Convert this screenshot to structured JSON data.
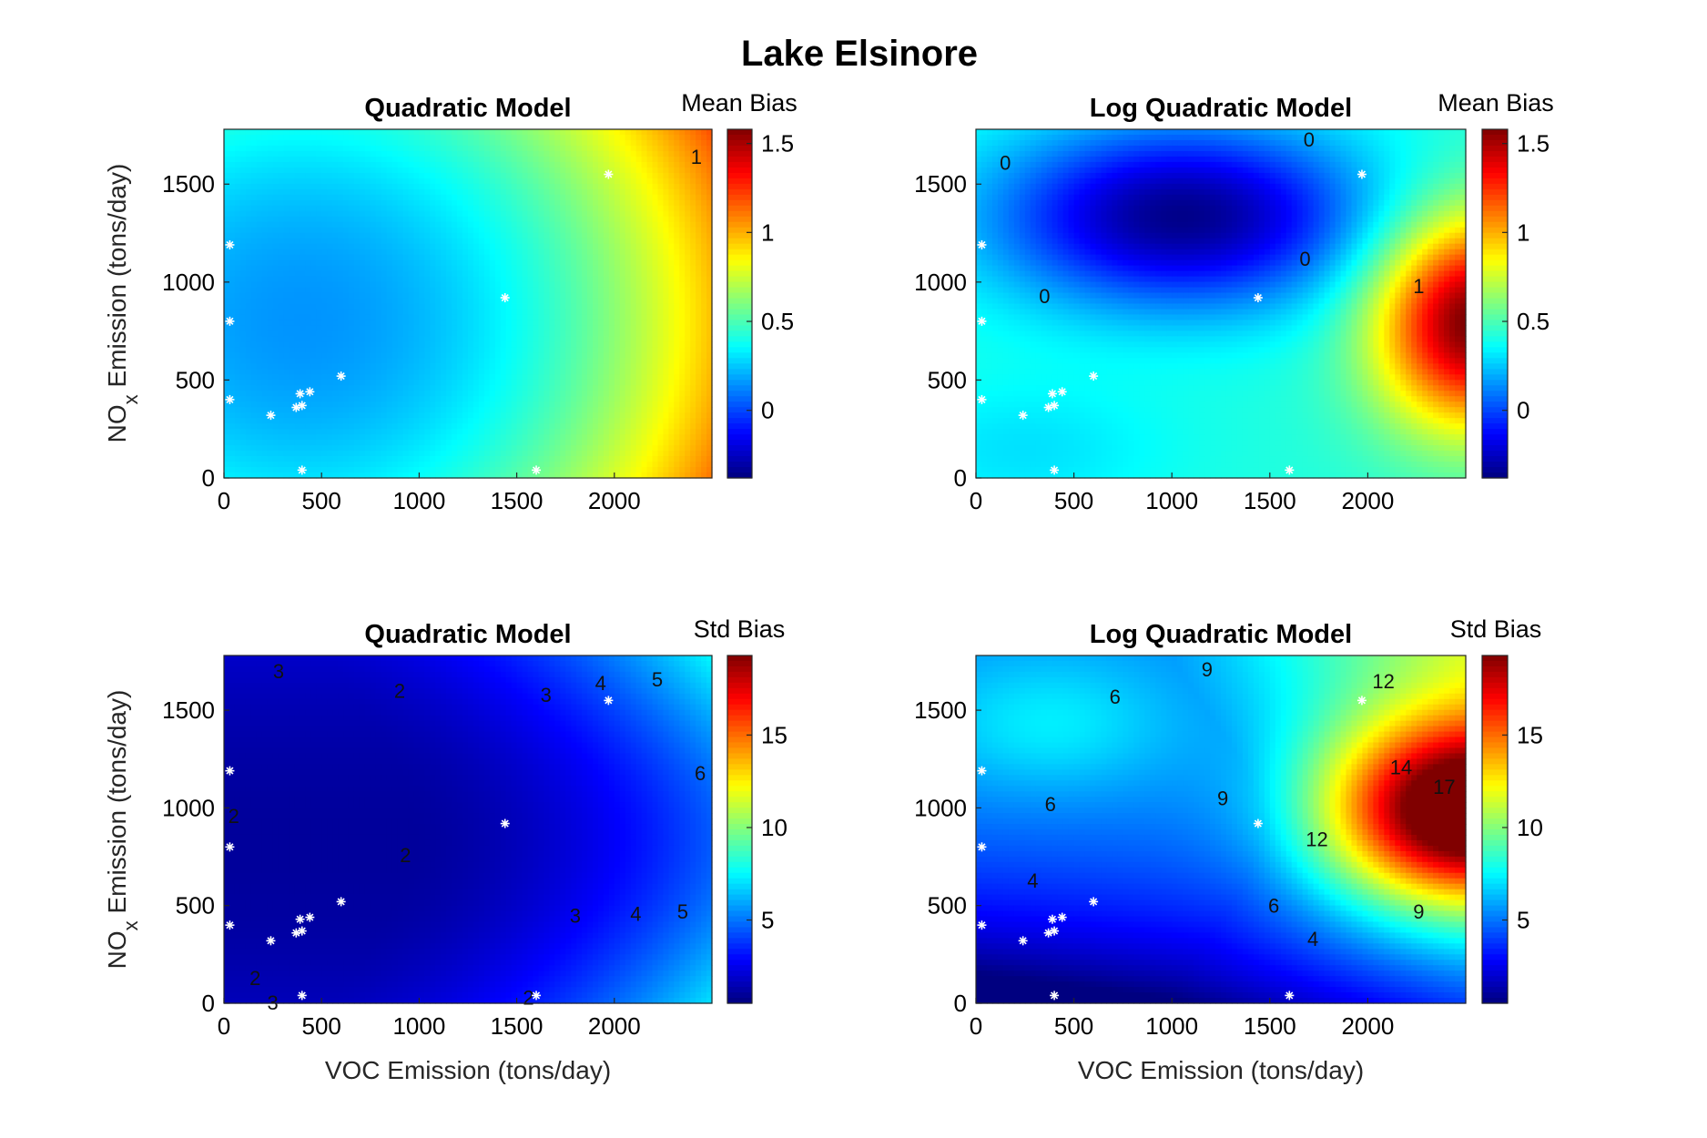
{
  "figure": {
    "title": "Lake Elsinore",
    "xlabel": "VOC Emission (tons/day)",
    "ylabel_prefix": "NO",
    "ylabel_subscript": "x",
    "ylabel_suffix": " Emission (tons/day)"
  },
  "chart_data": [
    {
      "type": "heatmap",
      "title": "Quadratic Model",
      "colorbar_label": "Mean Bias",
      "colormap": "jet",
      "xlim": [
        0,
        2500
      ],
      "ylim": [
        0,
        1780
      ],
      "clim": [
        -0.38,
        1.58
      ],
      "xticks": [
        0,
        500,
        1000,
        1500,
        2000
      ],
      "yticks": [
        0,
        500,
        1000,
        1500
      ],
      "cbar_ticks": [
        0,
        0.5,
        1,
        1.5
      ],
      "cbar_tick_labels": [
        "0",
        "0.5",
        "1",
        "1.5"
      ],
      "contour_labels": [
        {
          "value": 1,
          "text": "1",
          "x": 2420,
          "y": 1640
        }
      ],
      "surface_anchors": [
        {
          "x": 400,
          "y": 800,
          "value": 0.15
        },
        {
          "x": 2500,
          "y": 1780,
          "value": 1.45
        },
        {
          "x": 2500,
          "y": 0,
          "value": 0.95
        },
        {
          "x": 1500,
          "y": 800,
          "value": 0.35
        }
      ],
      "points": [
        {
          "x": 30,
          "y": 1190
        },
        {
          "x": 30,
          "y": 800
        },
        {
          "x": 30,
          "y": 400
        },
        {
          "x": 240,
          "y": 320
        },
        {
          "x": 370,
          "y": 360
        },
        {
          "x": 400,
          "y": 370
        },
        {
          "x": 390,
          "y": 430
        },
        {
          "x": 440,
          "y": 440
        },
        {
          "x": 600,
          "y": 520
        },
        {
          "x": 400,
          "y": 40
        },
        {
          "x": 1440,
          "y": 920
        },
        {
          "x": 1600,
          "y": 40
        },
        {
          "x": 1970,
          "y": 1550
        }
      ]
    },
    {
      "type": "heatmap",
      "title": "Log Quadratic Model",
      "colorbar_label": "Mean Bias",
      "colormap": "jet",
      "xlim": [
        0,
        2500
      ],
      "ylim": [
        0,
        1780
      ],
      "clim": [
        -0.38,
        1.58
      ],
      "xticks": [
        0,
        500,
        1000,
        1500,
        2000
      ],
      "yticks": [
        0,
        500,
        1000,
        1500
      ],
      "cbar_ticks": [
        0,
        0.5,
        1,
        1.5
      ],
      "cbar_tick_labels": [
        "0",
        "0.5",
        "1",
        "1.5"
      ],
      "contour_labels": [
        {
          "value": 0,
          "text": "0",
          "x": 150,
          "y": 1610
        },
        {
          "value": 0,
          "text": "0",
          "x": 1700,
          "y": 1730
        },
        {
          "value": 0,
          "text": "0",
          "x": 1680,
          "y": 1120
        },
        {
          "value": 0,
          "text": "0",
          "x": 350,
          "y": 930
        },
        {
          "value": 1,
          "text": "1",
          "x": 2260,
          "y": 980
        }
      ],
      "surface_anchors": [
        {
          "x": 1000,
          "y": 1300,
          "value": -0.35
        },
        {
          "x": 2500,
          "y": 800,
          "value": 1.55
        },
        {
          "x": 1500,
          "y": 300,
          "value": 0.35
        }
      ],
      "points": [
        {
          "x": 30,
          "y": 1190
        },
        {
          "x": 30,
          "y": 800
        },
        {
          "x": 30,
          "y": 400
        },
        {
          "x": 240,
          "y": 320
        },
        {
          "x": 370,
          "y": 360
        },
        {
          "x": 400,
          "y": 370
        },
        {
          "x": 390,
          "y": 430
        },
        {
          "x": 440,
          "y": 440
        },
        {
          "x": 600,
          "y": 520
        },
        {
          "x": 400,
          "y": 40
        },
        {
          "x": 1440,
          "y": 920
        },
        {
          "x": 1600,
          "y": 40
        },
        {
          "x": 1970,
          "y": 1550
        }
      ]
    },
    {
      "type": "heatmap",
      "title": "Quadratic Model",
      "colorbar_label": "Std Bias",
      "colormap": "jet",
      "xlim": [
        0,
        2500
      ],
      "ylim": [
        0,
        1780
      ],
      "clim": [
        0.5,
        19.3
      ],
      "xticks": [
        0,
        500,
        1000,
        1500,
        2000
      ],
      "yticks": [
        0,
        500,
        1000,
        1500
      ],
      "cbar_ticks": [
        5,
        10,
        15
      ],
      "cbar_tick_labels": [
        "5",
        "10",
        "15"
      ],
      "contour_labels": [
        {
          "value": 3,
          "text": "3",
          "x": 280,
          "y": 1700
        },
        {
          "value": 2,
          "text": "2",
          "x": 900,
          "y": 1600
        },
        {
          "value": 3,
          "text": "3",
          "x": 1650,
          "y": 1580
        },
        {
          "value": 4,
          "text": "4",
          "x": 1930,
          "y": 1640
        },
        {
          "value": 5,
          "text": "5",
          "x": 2220,
          "y": 1660
        },
        {
          "value": 6,
          "text": "6",
          "x": 2440,
          "y": 1180
        },
        {
          "value": 2,
          "text": "2",
          "x": 50,
          "y": 960
        },
        {
          "value": 2,
          "text": "2",
          "x": 930,
          "y": 760
        },
        {
          "value": 3,
          "text": "3",
          "x": 1800,
          "y": 450
        },
        {
          "value": 4,
          "text": "4",
          "x": 2110,
          "y": 460
        },
        {
          "value": 5,
          "text": "5",
          "x": 2350,
          "y": 470
        },
        {
          "value": 2,
          "text": "2",
          "x": 160,
          "y": 130
        },
        {
          "value": 3,
          "text": "3",
          "x": 250,
          "y": 5
        },
        {
          "value": 2,
          "text": "2",
          "x": 1560,
          "y": 30
        }
      ],
      "surface_anchors": [
        {
          "x": 500,
          "y": 200,
          "value": 1.0
        },
        {
          "x": 700,
          "y": 1300,
          "value": 1.8
        },
        {
          "x": 2500,
          "y": 1000,
          "value": 6.5
        }
      ],
      "points": [
        {
          "x": 30,
          "y": 1190
        },
        {
          "x": 30,
          "y": 800
        },
        {
          "x": 30,
          "y": 400
        },
        {
          "x": 240,
          "y": 320
        },
        {
          "x": 370,
          "y": 360
        },
        {
          "x": 400,
          "y": 370
        },
        {
          "x": 390,
          "y": 430
        },
        {
          "x": 440,
          "y": 440
        },
        {
          "x": 600,
          "y": 520
        },
        {
          "x": 400,
          "y": 40
        },
        {
          "x": 1440,
          "y": 920
        },
        {
          "x": 1600,
          "y": 40
        },
        {
          "x": 1970,
          "y": 1550
        }
      ]
    },
    {
      "type": "heatmap",
      "title": "Log Quadratic Model",
      "colorbar_label": "Std Bias",
      "colormap": "jet",
      "xlim": [
        0,
        2500
      ],
      "ylim": [
        0,
        1780
      ],
      "clim": [
        0.5,
        19.3
      ],
      "xticks": [
        0,
        500,
        1000,
        1500,
        2000
      ],
      "yticks": [
        0,
        500,
        1000,
        1500
      ],
      "cbar_ticks": [
        5,
        10,
        15
      ],
      "cbar_tick_labels": [
        "5",
        "10",
        "15"
      ],
      "contour_labels": [
        {
          "value": 9,
          "text": "9",
          "x": 1180,
          "y": 1710
        },
        {
          "value": 12,
          "text": "12",
          "x": 2080,
          "y": 1650
        },
        {
          "value": 6,
          "text": "6",
          "x": 710,
          "y": 1570
        },
        {
          "value": 14,
          "text": "14",
          "x": 2170,
          "y": 1210
        },
        {
          "value": 17,
          "text": "17",
          "x": 2390,
          "y": 1110
        },
        {
          "value": 6,
          "text": "6",
          "x": 380,
          "y": 1020
        },
        {
          "value": 9,
          "text": "9",
          "x": 1260,
          "y": 1050
        },
        {
          "value": 12,
          "text": "12",
          "x": 1740,
          "y": 840
        },
        {
          "value": 4,
          "text": "4",
          "x": 290,
          "y": 630
        },
        {
          "value": 6,
          "text": "6",
          "x": 1520,
          "y": 500
        },
        {
          "value": 9,
          "text": "9",
          "x": 2260,
          "y": 470
        },
        {
          "value": 4,
          "text": "4",
          "x": 1720,
          "y": 330
        }
      ],
      "surface_anchors": [
        {
          "x": 2500,
          "y": 1000,
          "value": 18.8
        },
        {
          "x": 300,
          "y": 100,
          "value": 1.0
        },
        {
          "x": 300,
          "y": 1400,
          "value": 4.5
        }
      ],
      "points": [
        {
          "x": 30,
          "y": 1190
        },
        {
          "x": 30,
          "y": 800
        },
        {
          "x": 30,
          "y": 400
        },
        {
          "x": 240,
          "y": 320
        },
        {
          "x": 370,
          "y": 360
        },
        {
          "x": 400,
          "y": 370
        },
        {
          "x": 390,
          "y": 430
        },
        {
          "x": 440,
          "y": 440
        },
        {
          "x": 600,
          "y": 520
        },
        {
          "x": 400,
          "y": 40
        },
        {
          "x": 1440,
          "y": 920
        },
        {
          "x": 1600,
          "y": 40
        },
        {
          "x": 1970,
          "y": 1550
        }
      ]
    }
  ]
}
